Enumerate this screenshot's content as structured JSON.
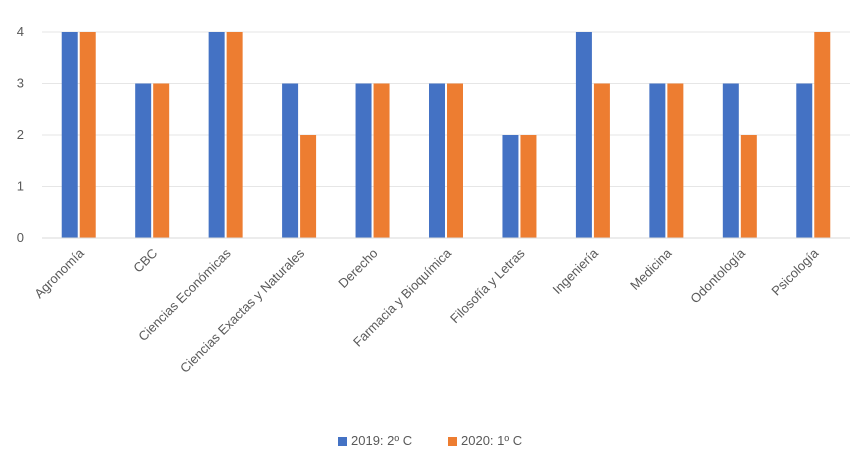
{
  "chart_data": {
    "type": "bar",
    "title": "",
    "xlabel": "",
    "ylabel": "",
    "ylim": [
      0,
      4
    ],
    "yticks": [
      0,
      1,
      2,
      3,
      4
    ],
    "grid": true,
    "legend_position": "bottom",
    "categories": [
      "Agronomía",
      "CBC",
      "Ciencias Económicas",
      "Ciencias Exactas y Naturales",
      "Derecho",
      "Farmacia y Bioquímica",
      "Filosofía y Letras",
      "Ingeniería",
      "Medicina",
      "Odontología",
      "Psicología"
    ],
    "series": [
      {
        "name": "2019: 2º C",
        "color": "#4472C4",
        "values": [
          4,
          3,
          4,
          3,
          3,
          3,
          2,
          4,
          3,
          3,
          3
        ]
      },
      {
        "name": "2020: 1º C",
        "color": "#ED7D31",
        "values": [
          4,
          3,
          4,
          2,
          3,
          3,
          2,
          3,
          3,
          2,
          4
        ]
      }
    ]
  }
}
